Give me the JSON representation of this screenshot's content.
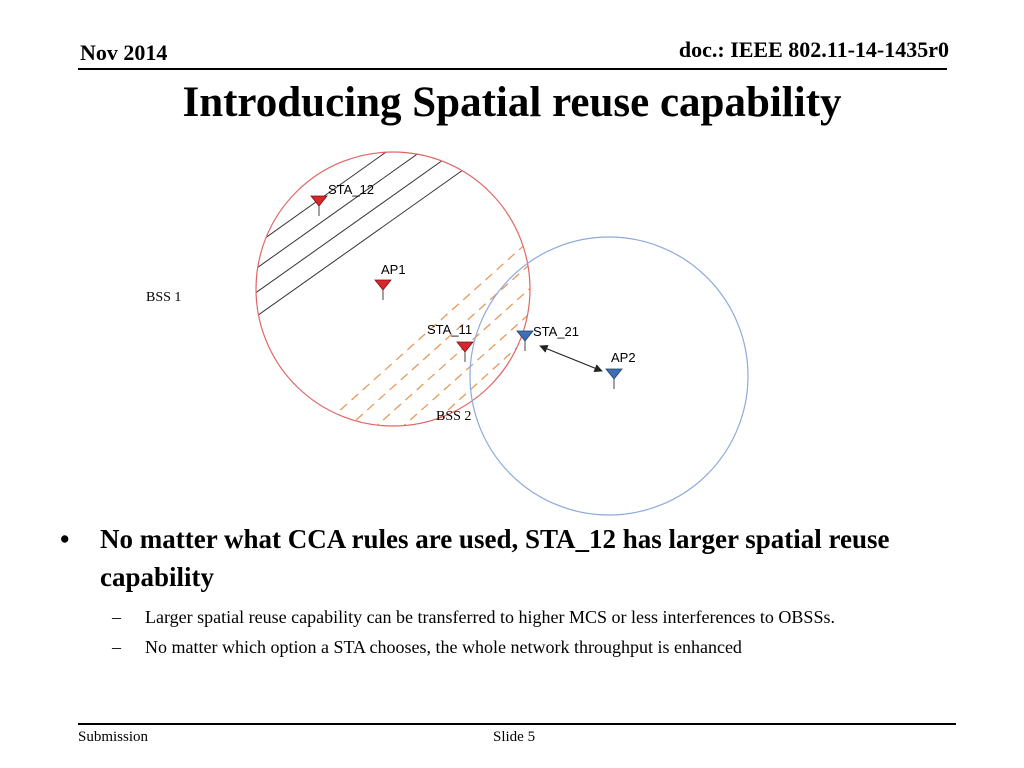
{
  "header": {
    "date": "Nov 2014",
    "doc_id": "doc.: IEEE 802.11-14-1435r0"
  },
  "title": "Introducing Spatial reuse capability",
  "diagram": {
    "labels": {
      "bss1": "BSS 1",
      "bss2": "BSS 2",
      "sta12": "STA_12",
      "ap1": "AP1",
      "sta11": "STA_11",
      "sta21": "STA_21",
      "ap2": "AP2"
    },
    "colors": {
      "bss1_circle": "#e06666",
      "bss2_circle": "#8eaadb",
      "bss1_marker": "#d9262b",
      "bss2_marker": "#3d6fb5",
      "hatch_black": "#333333",
      "hatch_orange": "#e69a5a"
    }
  },
  "bullets": [
    {
      "text": "No matter what CCA rules are used, STA_12 has larger spatial reuse capability",
      "sub": [
        "Larger spatial reuse capability can be transferred to higher MCS or less interferences to OBSSs.",
        "No matter which option a STA chooses, the whole network throughput is enhanced"
      ]
    }
  ],
  "footer": {
    "left": "Submission",
    "center": "Slide 5"
  }
}
